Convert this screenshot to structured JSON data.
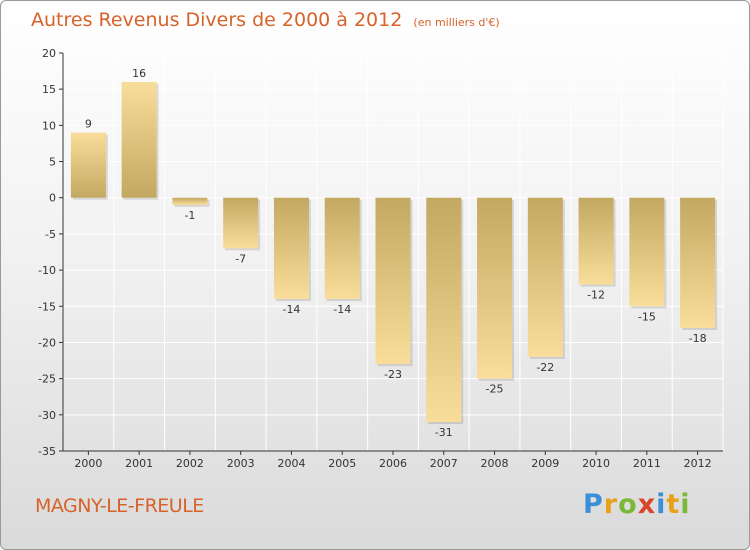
{
  "title": "Autres Revenus Divers de 2000 à 2012",
  "subtitle": "(en milliers d'€)",
  "location": "MAGNY-LE-FREULE",
  "brand": {
    "letters": [
      "P",
      "r",
      "o",
      "x",
      "i",
      "t",
      "i"
    ],
    "colors": [
      "#3b8fd6",
      "#e8a21a",
      "#7bb83a",
      "#d8452a",
      "#3b8fd6",
      "#e8a21a",
      "#7bb83a"
    ]
  },
  "colors": {
    "title": "#d8622a",
    "bar_dark": "#c2a860",
    "bar_light": "#f8de9a",
    "axis": "#333333",
    "grid": "#ffffff"
  },
  "chart_data": {
    "type": "bar",
    "categories": [
      "2000",
      "2001",
      "2002",
      "2003",
      "2004",
      "2005",
      "2006",
      "2007",
      "2008",
      "2009",
      "2010",
      "2011",
      "2012"
    ],
    "values": [
      9,
      16,
      -1,
      -7,
      -14,
      -14,
      -23,
      -31,
      -25,
      -22,
      -12,
      -15,
      -18
    ],
    "data_labels": [
      "9",
      "16",
      "-1",
      "-7",
      "-14",
      "-14",
      "-23",
      "-31",
      "-25",
      "-22",
      "-12",
      "-15",
      "-18"
    ],
    "ylim": [
      -35,
      20
    ],
    "yticks": [
      20,
      15,
      10,
      5,
      0,
      -5,
      -10,
      -15,
      -20,
      -25,
      -30,
      -35
    ],
    "grid": true
  }
}
